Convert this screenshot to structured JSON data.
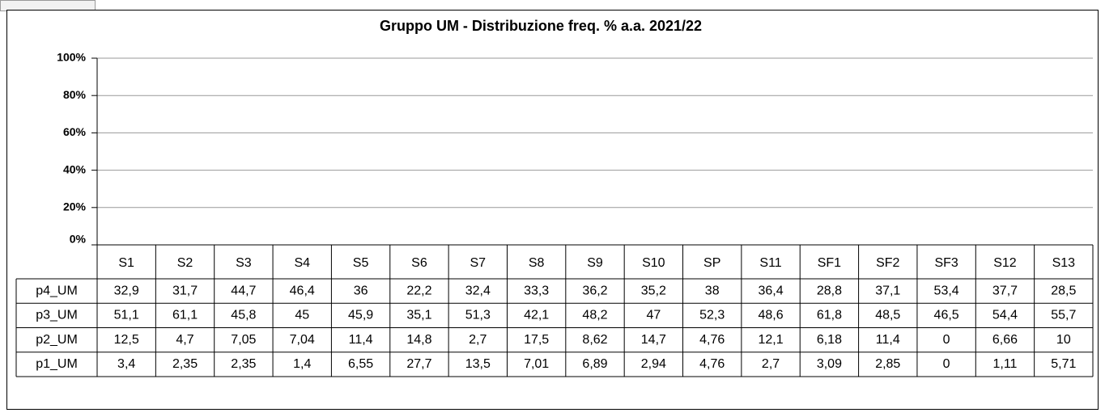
{
  "chart_data": {
    "type": "bar",
    "title": "Gruppo UM - Distribuzione freq. % a.a. 2021/22",
    "categories": [
      "S1",
      "S2",
      "S3",
      "S4",
      "S5",
      "S6",
      "S7",
      "S8",
      "S9",
      "S10",
      "SP",
      "S11",
      "SF1",
      "SF2",
      "SF3",
      "S12",
      "S13"
    ],
    "series": [
      {
        "name": "p4_UM",
        "values": [
          32.9,
          31.7,
          44.7,
          46.4,
          36,
          22.2,
          32.4,
          33.3,
          36.2,
          35.2,
          38,
          36.4,
          28.8,
          37.1,
          53.4,
          37.7,
          28.5
        ],
        "value_labels": [
          "32,9",
          "31,7",
          "44,7",
          "46,4",
          "36",
          "22,2",
          "32,4",
          "33,3",
          "36,2",
          "35,2",
          "38",
          "36,4",
          "28,8",
          "37,1",
          "53,4",
          "37,7",
          "28,5"
        ]
      },
      {
        "name": "p3_UM",
        "values": [
          51.1,
          61.1,
          45.8,
          45,
          45.9,
          35.1,
          51.3,
          42.1,
          48.2,
          47,
          52.3,
          48.6,
          61.8,
          48.5,
          46.5,
          54.4,
          55.7
        ],
        "value_labels": [
          "51,1",
          "61,1",
          "45,8",
          "45",
          "45,9",
          "35,1",
          "51,3",
          "42,1",
          "48,2",
          "47",
          "52,3",
          "48,6",
          "61,8",
          "48,5",
          "46,5",
          "54,4",
          "55,7"
        ]
      },
      {
        "name": "p2_UM",
        "values": [
          12.5,
          4.7,
          7.05,
          7.04,
          11.4,
          14.8,
          2.7,
          17.5,
          8.62,
          14.7,
          4.76,
          12.1,
          6.18,
          11.4,
          0,
          6.66,
          10
        ],
        "value_labels": [
          "12,5",
          "4,7",
          "7,05",
          "7,04",
          "11,4",
          "14,8",
          "2,7",
          "17,5",
          "8,62",
          "14,7",
          "4,76",
          "12,1",
          "6,18",
          "11,4",
          "0",
          "6,66",
          "10"
        ]
      },
      {
        "name": "p1_UM",
        "values": [
          3.4,
          2.35,
          2.35,
          1.4,
          6.55,
          27.7,
          13.5,
          7.01,
          6.89,
          2.94,
          4.76,
          2.7,
          3.09,
          2.85,
          0,
          1.11,
          5.71
        ],
        "value_labels": [
          "3,4",
          "2,35",
          "2,35",
          "1,4",
          "6,55",
          "27,7",
          "13,5",
          "7,01",
          "6,89",
          "2,94",
          "4,76",
          "2,7",
          "3,09",
          "2,85",
          "0",
          "1,11",
          "5,71"
        ]
      }
    ],
    "ylim": [
      0,
      100
    ],
    "yticks": [
      {
        "value": 0,
        "label": "0%"
      },
      {
        "value": 20,
        "label": "20%"
      },
      {
        "value": 40,
        "label": "40%"
      },
      {
        "value": 60,
        "label": "60%"
      },
      {
        "value": 80,
        "label": "80%"
      },
      {
        "value": 100,
        "label": "100%"
      }
    ],
    "grid": true
  }
}
